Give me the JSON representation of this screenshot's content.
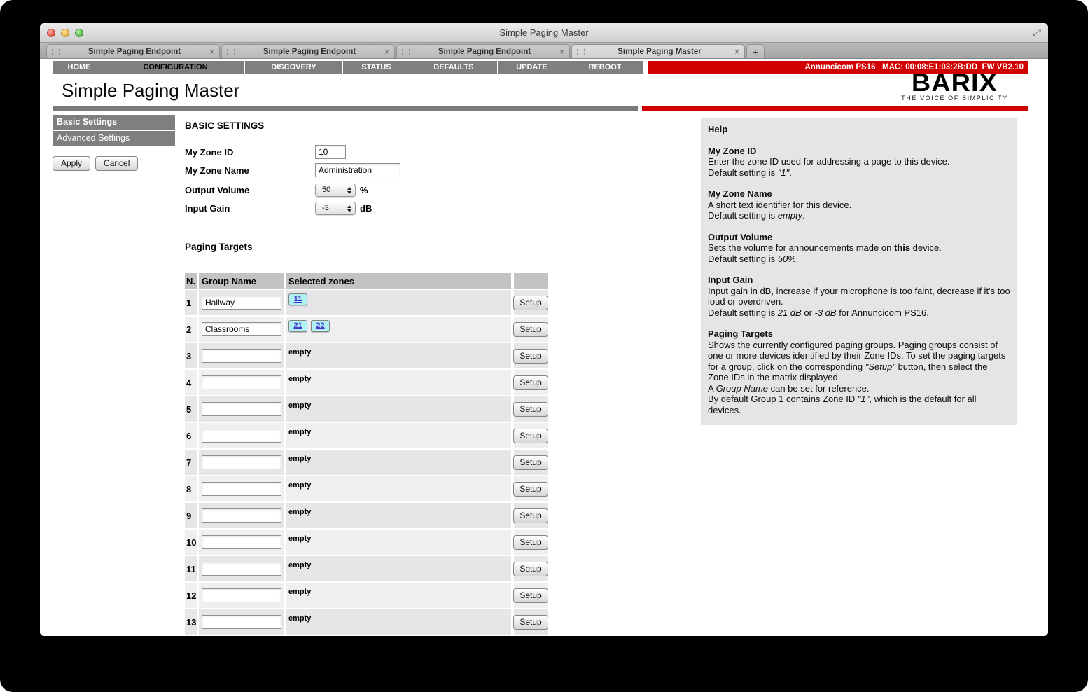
{
  "window": {
    "title": "Simple Paging Master",
    "resize_icon": "expand-arrows"
  },
  "tabs": [
    {
      "label": "Simple Paging Endpoint",
      "active": false
    },
    {
      "label": "Simple Paging Endpoint",
      "active": false
    },
    {
      "label": "Simple Paging Endpoint",
      "active": false
    },
    {
      "label": "Simple Paging Master",
      "active": true
    }
  ],
  "new_tab_label": "+",
  "nav": {
    "items": [
      {
        "label": "HOME",
        "active": false
      },
      {
        "label": "CONFIGURATION",
        "active": true
      },
      {
        "label": "DISCOVERY",
        "active": false
      },
      {
        "label": "STATUS",
        "active": false
      },
      {
        "label": "DEFAULTS",
        "active": false
      },
      {
        "label": "UPDATE",
        "active": false
      },
      {
        "label": "REBOOT",
        "active": false
      }
    ],
    "device_info": "Annuncicom PS16   MAC: 00:08:E1:03:2B:DD  FW VB2.10"
  },
  "header": {
    "title": "Simple Paging Master",
    "logo_brand": "BARIX",
    "logo_tagline": "THE VOICE OF SIMPLICITY",
    "accent_red": "#d10000",
    "accent_gray": "#7a7a7a"
  },
  "sidebar": {
    "items": [
      {
        "label": "Basic Settings",
        "active": true
      },
      {
        "label": "Advanced Settings",
        "active": false
      }
    ],
    "apply_label": "Apply",
    "cancel_label": "Cancel"
  },
  "main": {
    "section_title": "BASIC SETTINGS",
    "fields": [
      {
        "label": "My Zone ID",
        "type": "text",
        "value": "10"
      },
      {
        "label": "My Zone Name",
        "type": "text",
        "value": "Administration"
      },
      {
        "label": "Output Volume",
        "type": "select",
        "value": "50",
        "unit": "%"
      },
      {
        "label": "Input Gain",
        "type": "select",
        "value": "-3",
        "unit": "dB"
      }
    ],
    "paging_targets": {
      "title": "Paging Targets",
      "columns": [
        "N.",
        "Group Name",
        "Selected zones"
      ],
      "setup_label": "Setup",
      "empty_label": "empty",
      "rows": [
        {
          "n": "1",
          "group_name": "Hallway",
          "zones": [
            "11"
          ]
        },
        {
          "n": "2",
          "group_name": "Classrooms",
          "zones": [
            "21",
            "22"
          ]
        },
        {
          "n": "3",
          "group_name": "",
          "zones": []
        },
        {
          "n": "4",
          "group_name": "",
          "zones": []
        },
        {
          "n": "5",
          "group_name": "",
          "zones": []
        },
        {
          "n": "6",
          "group_name": "",
          "zones": []
        },
        {
          "n": "7",
          "group_name": "",
          "zones": []
        },
        {
          "n": "8",
          "group_name": "",
          "zones": []
        },
        {
          "n": "9",
          "group_name": "",
          "zones": []
        },
        {
          "n": "10",
          "group_name": "",
          "zones": []
        },
        {
          "n": "11",
          "group_name": "",
          "zones": []
        },
        {
          "n": "12",
          "group_name": "",
          "zones": []
        },
        {
          "n": "13",
          "group_name": "",
          "zones": []
        }
      ]
    }
  },
  "help": {
    "title": "Help",
    "sections": [
      {
        "heading": "My Zone ID",
        "lines": [
          [
            {
              "t": "Enter the zone ID used for addressing a page to this device."
            }
          ],
          [
            {
              "t": "Default setting is "
            },
            {
              "t": "\"1\"",
              "i": true
            },
            {
              "t": "."
            }
          ]
        ]
      },
      {
        "heading": "My Zone Name",
        "lines": [
          [
            {
              "t": "A short text identifier for this device."
            }
          ],
          [
            {
              "t": "Default setting is "
            },
            {
              "t": "empty",
              "i": true
            },
            {
              "t": "."
            }
          ]
        ]
      },
      {
        "heading": "Output Volume",
        "lines": [
          [
            {
              "t": "Sets the volume for announcements made on "
            },
            {
              "t": "this",
              "b": true
            },
            {
              "t": " device."
            }
          ],
          [
            {
              "t": "Default setting is "
            },
            {
              "t": "50%",
              "i": true
            },
            {
              "t": "."
            }
          ]
        ]
      },
      {
        "heading": "Input Gain",
        "lines": [
          [
            {
              "t": "Input gain in dB, increase if your microphone is too faint, decrease if it's too loud or overdriven."
            }
          ],
          [
            {
              "t": "Default setting is "
            },
            {
              "t": "21 dB",
              "i": true
            },
            {
              "t": " or "
            },
            {
              "t": "-3 dB",
              "i": true
            },
            {
              "t": " for Annuncicom PS16."
            }
          ]
        ]
      },
      {
        "heading": "Paging Targets",
        "lines": [
          [
            {
              "t": "Shows the currently configured paging groups. Paging groups consist of one or more devices identified by their Zone IDs. To set the paging targets for a group, click on the corresponding "
            },
            {
              "t": "\"Setup\"",
              "i": true
            },
            {
              "t": " button, then select the Zone IDs in the matrix displayed."
            }
          ],
          [
            {
              "t": "A "
            },
            {
              "t": "Group Name",
              "i": true
            },
            {
              "t": " can be set for reference."
            }
          ],
          [
            {
              "t": "By default Group 1 contains Zone ID "
            },
            {
              "t": "\"1\"",
              "i": true
            },
            {
              "t": ", which is the default for all devices."
            }
          ]
        ]
      }
    ]
  }
}
